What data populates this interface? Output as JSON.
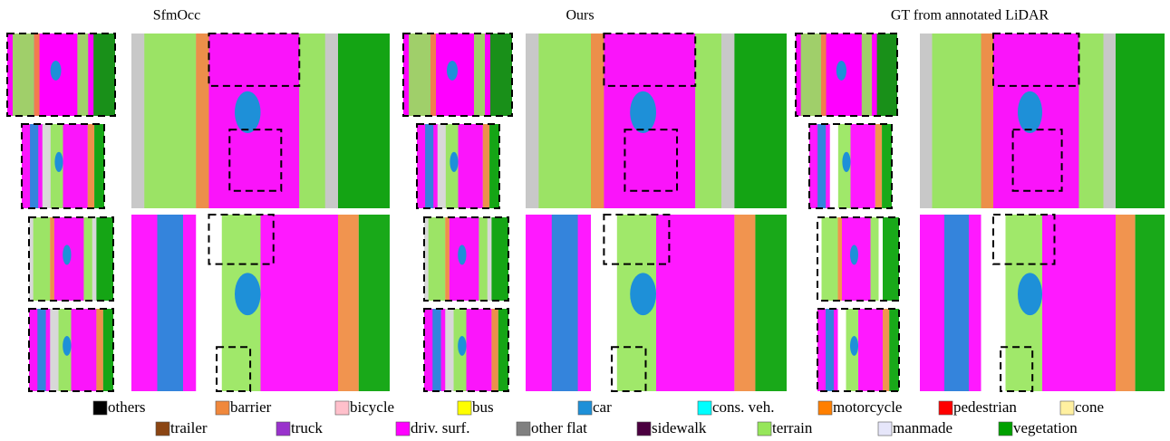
{
  "headers": [
    "SfmOcc",
    "Ours",
    "GT from annotated LiDAR"
  ],
  "legend": [
    {
      "label": "others",
      "color": "#000000"
    },
    {
      "label": "barrier",
      "color": "#f0883c"
    },
    {
      "label": "bicycle",
      "color": "#ffc0cb"
    },
    {
      "label": "bus",
      "color": "#ffff00"
    },
    {
      "label": "car",
      "color": "#1e90d8"
    },
    {
      "label": "cons. veh.",
      "color": "#00ffff"
    },
    {
      "label": "motorcycle",
      "color": "#ff7f00"
    },
    {
      "label": "pedestrian",
      "color": "#ff0000"
    },
    {
      "label": "cone",
      "color": "#fff0a0"
    },
    {
      "label": "trailer",
      "color": "#8b4513"
    },
    {
      "label": "truck",
      "color": "#9932cc"
    },
    {
      "label": "driv. surf.",
      "color": "#ff00ff"
    },
    {
      "label": "other flat",
      "color": "#808080"
    },
    {
      "label": "sidewalk",
      "color": "#4b0040"
    },
    {
      "label": "terrain",
      "color": "#96e65a"
    },
    {
      "label": "manmade",
      "color": "#e6e6fa"
    },
    {
      "label": "vegetation",
      "color": "#00a000"
    }
  ]
}
